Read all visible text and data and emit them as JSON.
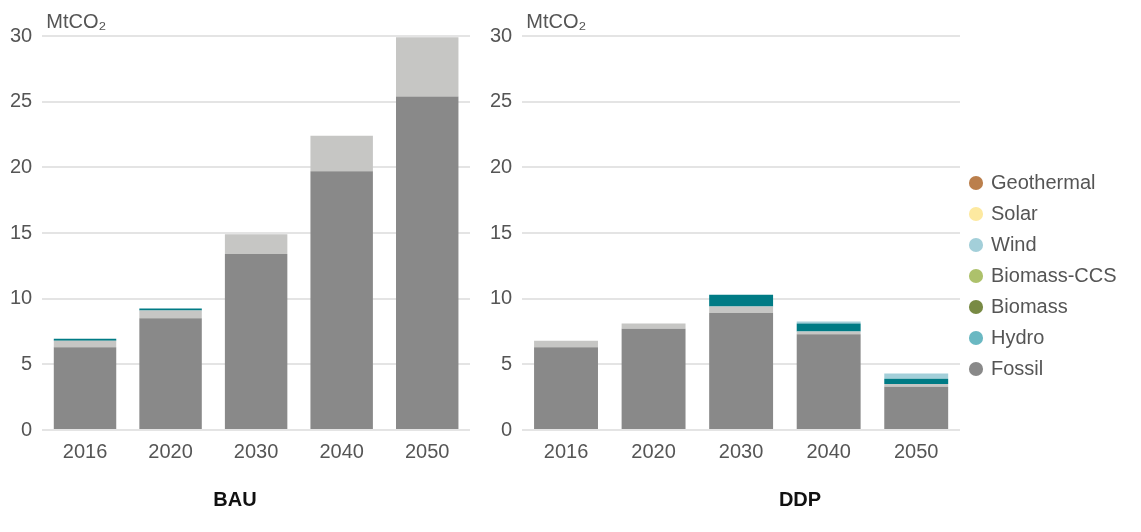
{
  "chart_data": [
    {
      "type": "bar",
      "title": "BAU",
      "ylabel": "MtCO₂",
      "categories": [
        "2016",
        "2020",
        "2030",
        "2040",
        "2050"
      ],
      "stacked": true,
      "ylim": [
        0,
        30
      ],
      "yticks": [
        0,
        5,
        10,
        15,
        20,
        25,
        30
      ],
      "grid": "y",
      "legend": false,
      "series": [
        {
          "color": "#898989",
          "values": [
            6.3,
            8.5,
            13.4,
            19.7,
            25.4
          ]
        },
        {
          "color": "#c6c6c4",
          "values": [
            0.5,
            0.6,
            1.5,
            2.7,
            4.5
          ]
        },
        {
          "color": "#007b85",
          "values": [
            0.05,
            0.05,
            null,
            null,
            null
          ]
        }
      ]
    },
    {
      "type": "bar",
      "title": "DDP",
      "ylabel": "MtCO₂",
      "categories": [
        "2016",
        "2020",
        "2030",
        "2040",
        "2050"
      ],
      "stacked": true,
      "ylim": [
        0,
        30
      ],
      "yticks": [
        0,
        5,
        10,
        15,
        20,
        25,
        30
      ],
      "grid": "y",
      "legend": "right",
      "series": [
        {
          "name": "Fossil",
          "color": "#898989",
          "values": [
            6.3,
            7.7,
            8.9,
            7.3,
            3.3
          ]
        },
        {
          "color": "#c6c6c4",
          "values": [
            0.5,
            0.4,
            0.5,
            0.2,
            0.2
          ]
        },
        {
          "color": "#007b85",
          "values": [
            null,
            null,
            0.9,
            0.6,
            0.4
          ]
        },
        {
          "name": "Hydro",
          "color": "#6ab8c2",
          "values": [
            null,
            null,
            null,
            null,
            null
          ]
        },
        {
          "name": "Biomass",
          "color": "#788a44",
          "values": [
            null,
            null,
            null,
            null,
            null
          ]
        },
        {
          "name": "Biomass-CCS",
          "color": "#adc16b",
          "values": [
            null,
            null,
            null,
            null,
            null
          ]
        },
        {
          "name": "Wind",
          "color": "#a3cfd9",
          "values": [
            null,
            null,
            null,
            0.15,
            0.4
          ]
        },
        {
          "name": "Solar",
          "color": "#fde9a0",
          "values": [
            null,
            null,
            null,
            null,
            null
          ]
        },
        {
          "name": "Geothermal",
          "color": "#bb7f4c",
          "values": [
            null,
            null,
            null,
            null,
            null
          ]
        }
      ]
    }
  ]
}
